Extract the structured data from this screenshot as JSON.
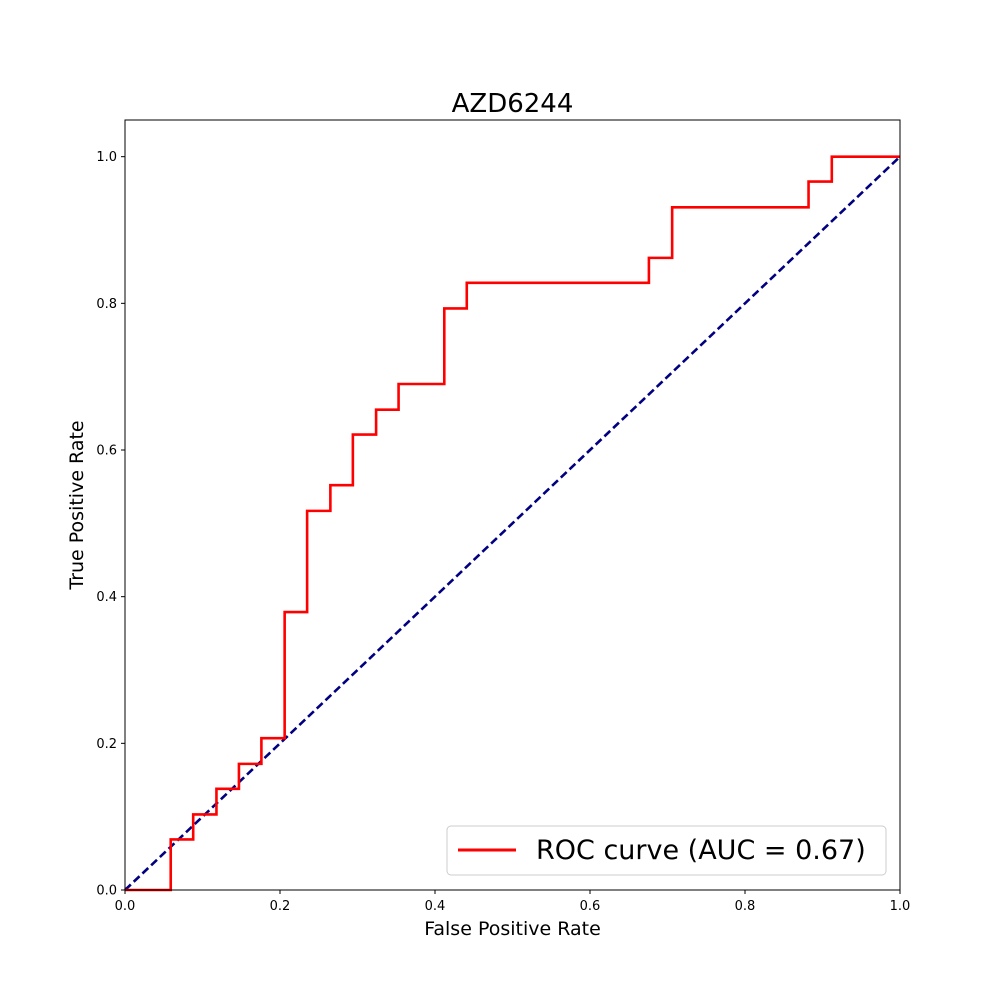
{
  "chart_data": {
    "type": "line",
    "title": "AZD6244",
    "xlabel": "False Positive Rate",
    "ylabel": "True Positive Rate",
    "xlim": [
      0.0,
      1.0
    ],
    "ylim": [
      0.0,
      1.05
    ],
    "xticks": [
      0.0,
      0.2,
      0.4,
      0.6,
      0.8,
      1.0
    ],
    "yticks": [
      0.0,
      0.2,
      0.4,
      0.6,
      0.8,
      1.0
    ],
    "xtick_labels": [
      "0.0",
      "0.2",
      "0.4",
      "0.6",
      "0.8",
      "1.0"
    ],
    "ytick_labels": [
      "0.0",
      "0.2",
      "0.4",
      "0.6",
      "0.8",
      "1.0"
    ],
    "grid": false,
    "legend_position": "lower-right",
    "series": [
      {
        "name": "ROC curve (AUC = 0.67)",
        "color": "#ff0000",
        "style": "solid",
        "x": [
          0.0,
          0.059,
          0.059,
          0.088,
          0.088,
          0.118,
          0.118,
          0.147,
          0.147,
          0.176,
          0.176,
          0.206,
          0.206,
          0.235,
          0.235,
          0.265,
          0.265,
          0.294,
          0.294,
          0.324,
          0.324,
          0.353,
          0.353,
          0.412,
          0.412,
          0.441,
          0.441,
          0.676,
          0.676,
          0.706,
          0.706,
          0.882,
          0.882,
          0.912,
          0.912,
          1.0
        ],
        "y": [
          0.0,
          0.0,
          0.069,
          0.069,
          0.103,
          0.103,
          0.138,
          0.138,
          0.172,
          0.172,
          0.207,
          0.207,
          0.379,
          0.379,
          0.517,
          0.517,
          0.552,
          0.552,
          0.621,
          0.621,
          0.655,
          0.655,
          0.69,
          0.69,
          0.793,
          0.793,
          0.828,
          0.828,
          0.862,
          0.862,
          0.931,
          0.931,
          0.966,
          0.966,
          1.0,
          1.0
        ]
      },
      {
        "color": "#000080",
        "style": "dashed",
        "x": [
          0.0,
          1.0
        ],
        "y": [
          0.0,
          1.0
        ]
      }
    ]
  }
}
